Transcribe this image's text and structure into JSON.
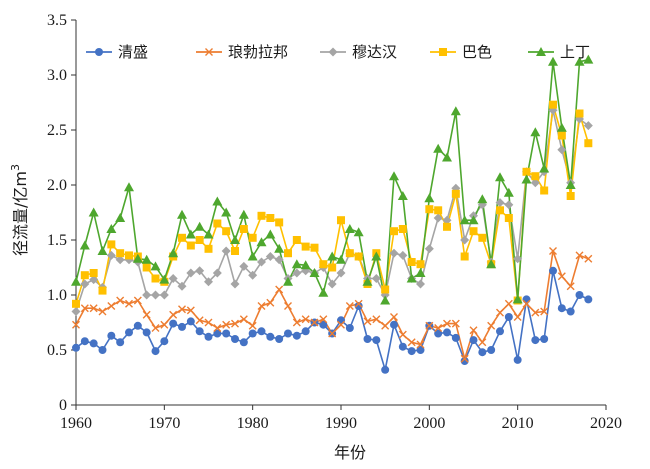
{
  "chart_data": {
    "type": "line",
    "title": "",
    "xlabel": "年份",
    "ylabel": "径流量/亿m",
    "ylabel_superscript": "3",
    "xlim": [
      1960,
      2020
    ],
    "ylim": [
      0,
      3.5
    ],
    "xticks": [
      1960,
      1970,
      1980,
      1990,
      2000,
      2010,
      2020
    ],
    "xtick_labels": [
      "1960",
      "1970",
      "1980",
      "1990",
      "2000",
      "2010",
      "2020"
    ],
    "yticks": [
      0,
      0.5,
      1.0,
      1.5,
      2.0,
      2.5,
      3.0,
      3.5
    ],
    "ytick_labels": [
      "0",
      "0.5",
      "1.0",
      "1.5",
      "2.0",
      "2.5",
      "3.0",
      "3.5"
    ],
    "legend_position": "top",
    "x": [
      1960,
      1961,
      1962,
      1963,
      1964,
      1965,
      1966,
      1967,
      1968,
      1969,
      1970,
      1971,
      1972,
      1973,
      1974,
      1975,
      1976,
      1977,
      1978,
      1979,
      1980,
      1981,
      1982,
      1983,
      1984,
      1985,
      1986,
      1987,
      1988,
      1989,
      1990,
      1991,
      1992,
      1993,
      1994,
      1995,
      1996,
      1997,
      1998,
      1999,
      2000,
      2001,
      2002,
      2003,
      2004,
      2005,
      2006,
      2007,
      2008,
      2009,
      2010,
      2011,
      2012,
      2013,
      2014,
      2015,
      2016,
      2017,
      2018
    ],
    "series": [
      {
        "name": "清盛",
        "color": "#4472C4",
        "marker": "circle",
        "values": [
          0.52,
          0.58,
          0.56,
          0.5,
          0.63,
          0.57,
          0.66,
          0.72,
          0.66,
          0.49,
          0.58,
          0.74,
          0.71,
          0.76,
          0.67,
          0.62,
          0.65,
          0.65,
          0.6,
          0.57,
          0.65,
          0.67,
          0.62,
          0.6,
          0.65,
          0.63,
          0.67,
          0.75,
          0.73,
          0.65,
          0.77,
          0.7,
          0.9,
          0.6,
          0.59,
          0.32,
          0.73,
          0.53,
          0.49,
          0.5,
          0.72,
          0.65,
          0.66,
          0.61,
          0.4,
          0.59,
          0.48,
          0.5,
          0.67,
          0.8,
          0.41,
          0.96,
          0.59,
          0.6,
          1.22,
          0.88,
          0.85,
          1.0,
          0.96
        ]
      },
      {
        "name": "琅勃拉邦",
        "color": "#ED7D31",
        "marker": "x",
        "values": [
          0.73,
          0.88,
          0.88,
          0.85,
          0.9,
          0.95,
          0.92,
          0.95,
          0.82,
          0.7,
          0.73,
          0.82,
          0.87,
          0.86,
          0.77,
          0.75,
          0.7,
          0.73,
          0.74,
          0.78,
          0.72,
          0.9,
          0.93,
          1.05,
          0.9,
          0.75,
          0.78,
          0.75,
          0.78,
          0.65,
          0.73,
          0.9,
          0.92,
          0.76,
          0.78,
          0.72,
          0.8,
          0.64,
          0.57,
          0.55,
          0.72,
          0.7,
          0.74,
          0.74,
          0.42,
          0.68,
          0.57,
          0.72,
          0.84,
          0.92,
          0.8,
          0.92,
          0.84,
          0.85,
          1.4,
          1.17,
          1.08,
          1.36,
          1.33
        ]
      },
      {
        "name": "穆达汉",
        "color": "#A5A5A5",
        "marker": "diamond",
        "values": [
          0.85,
          1.1,
          1.14,
          1.07,
          1.36,
          1.32,
          1.32,
          1.3,
          1.0,
          1.0,
          1.0,
          1.15,
          1.08,
          1.2,
          1.22,
          1.12,
          1.2,
          1.4,
          1.1,
          1.26,
          1.18,
          1.3,
          1.35,
          1.32,
          1.15,
          1.2,
          1.22,
          1.2,
          1.25,
          1.1,
          1.2,
          1.38,
          1.35,
          1.15,
          1.15,
          1.0,
          1.38,
          1.36,
          1.15,
          1.1,
          1.42,
          1.7,
          1.68,
          1.97,
          1.5,
          1.72,
          1.82,
          1.3,
          1.84,
          1.82,
          1.33,
          2.12,
          2.02,
          2.12,
          2.68,
          2.32,
          2.02,
          2.6,
          2.54
        ]
      },
      {
        "name": "巴色",
        "color": "#FFC000",
        "marker": "square",
        "values": [
          0.92,
          1.18,
          1.2,
          1.04,
          1.46,
          1.38,
          1.36,
          1.35,
          1.25,
          1.15,
          1.12,
          1.35,
          1.52,
          1.45,
          1.5,
          1.42,
          1.65,
          1.58,
          1.4,
          1.6,
          1.52,
          1.72,
          1.7,
          1.66,
          1.38,
          1.5,
          1.44,
          1.43,
          1.28,
          1.25,
          1.68,
          1.38,
          1.35,
          1.1,
          1.38,
          1.05,
          1.58,
          1.6,
          1.3,
          1.28,
          1.78,
          1.77,
          1.62,
          1.92,
          1.35,
          1.58,
          1.52,
          1.28,
          1.77,
          1.7,
          0.95,
          2.12,
          2.08,
          1.95,
          2.73,
          2.45,
          1.9,
          2.65,
          2.38
        ]
      },
      {
        "name": "上丁",
        "color": "#4EA72E",
        "marker": "triangle",
        "values": [
          1.12,
          1.45,
          1.75,
          1.4,
          1.6,
          1.7,
          1.98,
          1.33,
          1.32,
          1.26,
          1.14,
          1.38,
          1.73,
          1.55,
          1.62,
          1.55,
          1.85,
          1.75,
          1.5,
          1.73,
          1.35,
          1.48,
          1.55,
          1.42,
          1.12,
          1.28,
          1.27,
          1.2,
          1.02,
          1.35,
          1.32,
          1.6,
          1.57,
          1.12,
          1.35,
          0.95,
          2.08,
          1.9,
          1.15,
          1.2,
          1.88,
          2.33,
          2.25,
          2.67,
          1.68,
          1.68,
          1.87,
          1.28,
          2.07,
          1.93,
          0.96,
          2.05,
          2.48,
          2.15,
          3.12,
          2.52,
          2.0,
          3.12,
          3.14
        ]
      }
    ]
  }
}
